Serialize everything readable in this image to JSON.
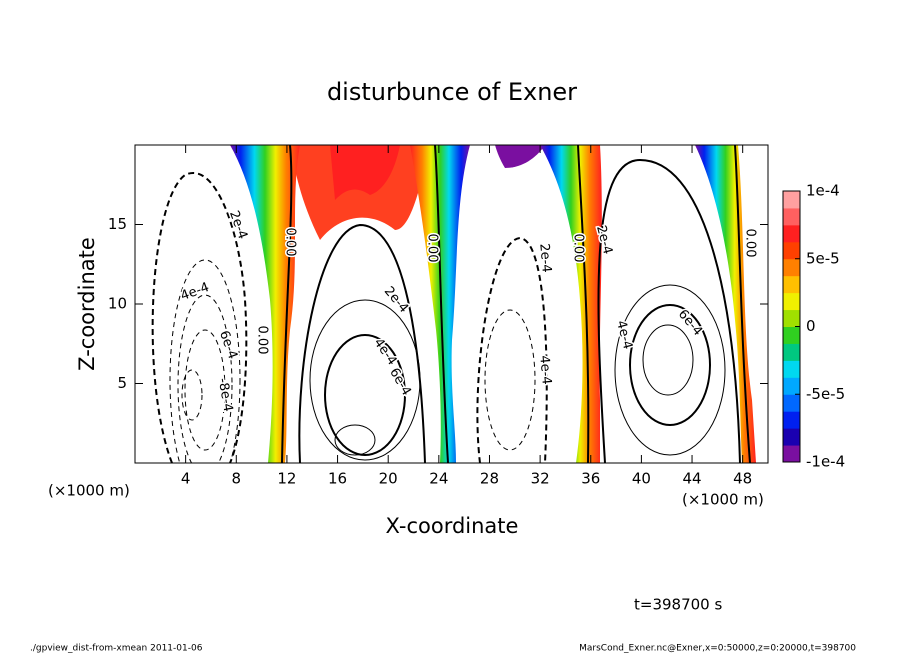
{
  "chart_data": {
    "type": "contour",
    "title": "disturbunce of Exner",
    "x_label": "X-coordinate",
    "y_label": "Z-coordinate",
    "x_unit_labels": [
      "(×1000 m)",
      "(×1000 m)"
    ],
    "xlim": [
      0,
      50
    ],
    "ylim": [
      0,
      20
    ],
    "xticks": [
      4,
      8,
      12,
      16,
      20,
      24,
      28,
      32,
      36,
      40,
      44,
      48
    ],
    "yticks": [
      5,
      10,
      15
    ],
    "colorbar": {
      "lim": [
        -0.0001,
        0.0001
      ],
      "ticks": [
        {
          "value": 0.0001,
          "label": "1e-4"
        },
        {
          "value": 5e-05,
          "label": "5e-5"
        },
        0,
        {
          "value": -5e-05,
          "label": "-5e-5"
        },
        {
          "value": -0.0001,
          "label": "-1e-4"
        }
      ],
      "colors": [
        "#7a0fa0",
        "#1a00b0",
        "#0020f0",
        "#0068ff",
        "#00a8ff",
        "#00d8f0",
        "#00c880",
        "#30d020",
        "#a0e000",
        "#f0f000",
        "#ffc000",
        "#ff8000",
        "#ff4000",
        "#ff2020",
        "#ff6060",
        "#ffa0a0"
      ]
    },
    "contour_labels": [
      "2e-4",
      "0.00",
      "4e-4",
      "6e-4",
      "-8e-4",
      "0.00",
      "2e-4",
      "4e-4",
      "6e-4",
      "0.00",
      "2e-4",
      "4e-4",
      "0.00",
      "2e-4",
      "4e-4",
      "6e-4",
      "0.00"
    ],
    "time_label": "t=398700 s",
    "footer_left": "./gpview_dist-from-xmean  2011-01-06",
    "footer_right": "MarsCond_Exner.nc@Exner,x=0:50000,z=0:20000,t=398700"
  }
}
